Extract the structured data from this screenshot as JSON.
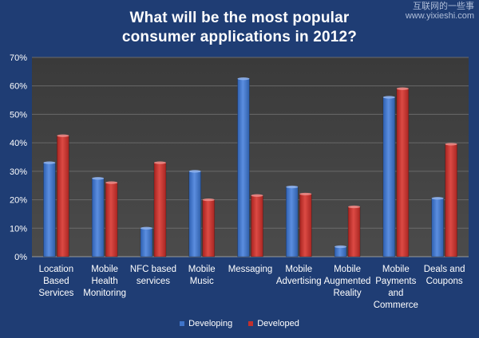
{
  "watermark": {
    "line1": "互联网的一些事",
    "line2": "www.yixieshi.com"
  },
  "chart_data": {
    "type": "bar",
    "title_lines": [
      "What will be the most popular",
      "consumer applications in 2012?"
    ],
    "categories": [
      [
        "Location",
        "Based",
        "Services"
      ],
      [
        "Mobile",
        "Health",
        "Monitoring"
      ],
      [
        "NFC based",
        "services"
      ],
      [
        "Mobile",
        "Music"
      ],
      [
        "Messaging"
      ],
      [
        "Mobile",
        "Advertising"
      ],
      [
        "Mobile",
        "Augmented",
        "Reality"
      ],
      [
        "Mobile",
        "Payments",
        "and",
        "Commerce"
      ],
      [
        "Deals and",
        "Coupons"
      ]
    ],
    "series": [
      {
        "name": "Developing",
        "color": "#3f74c9",
        "values": [
          33,
          27.5,
          10,
          30,
          62.5,
          24.5,
          3.5,
          56,
          20.5
        ]
      },
      {
        "name": "Developed",
        "color": "#c2302d",
        "values": [
          42.5,
          26,
          33,
          20,
          21.5,
          22,
          17.5,
          59,
          39.5
        ]
      }
    ],
    "y_ticks": [
      "0%",
      "10%",
      "20%",
      "30%",
      "40%",
      "50%",
      "60%",
      "70%"
    ],
    "ylim": [
      0,
      70
    ],
    "grid": true,
    "legend": "bottom"
  }
}
